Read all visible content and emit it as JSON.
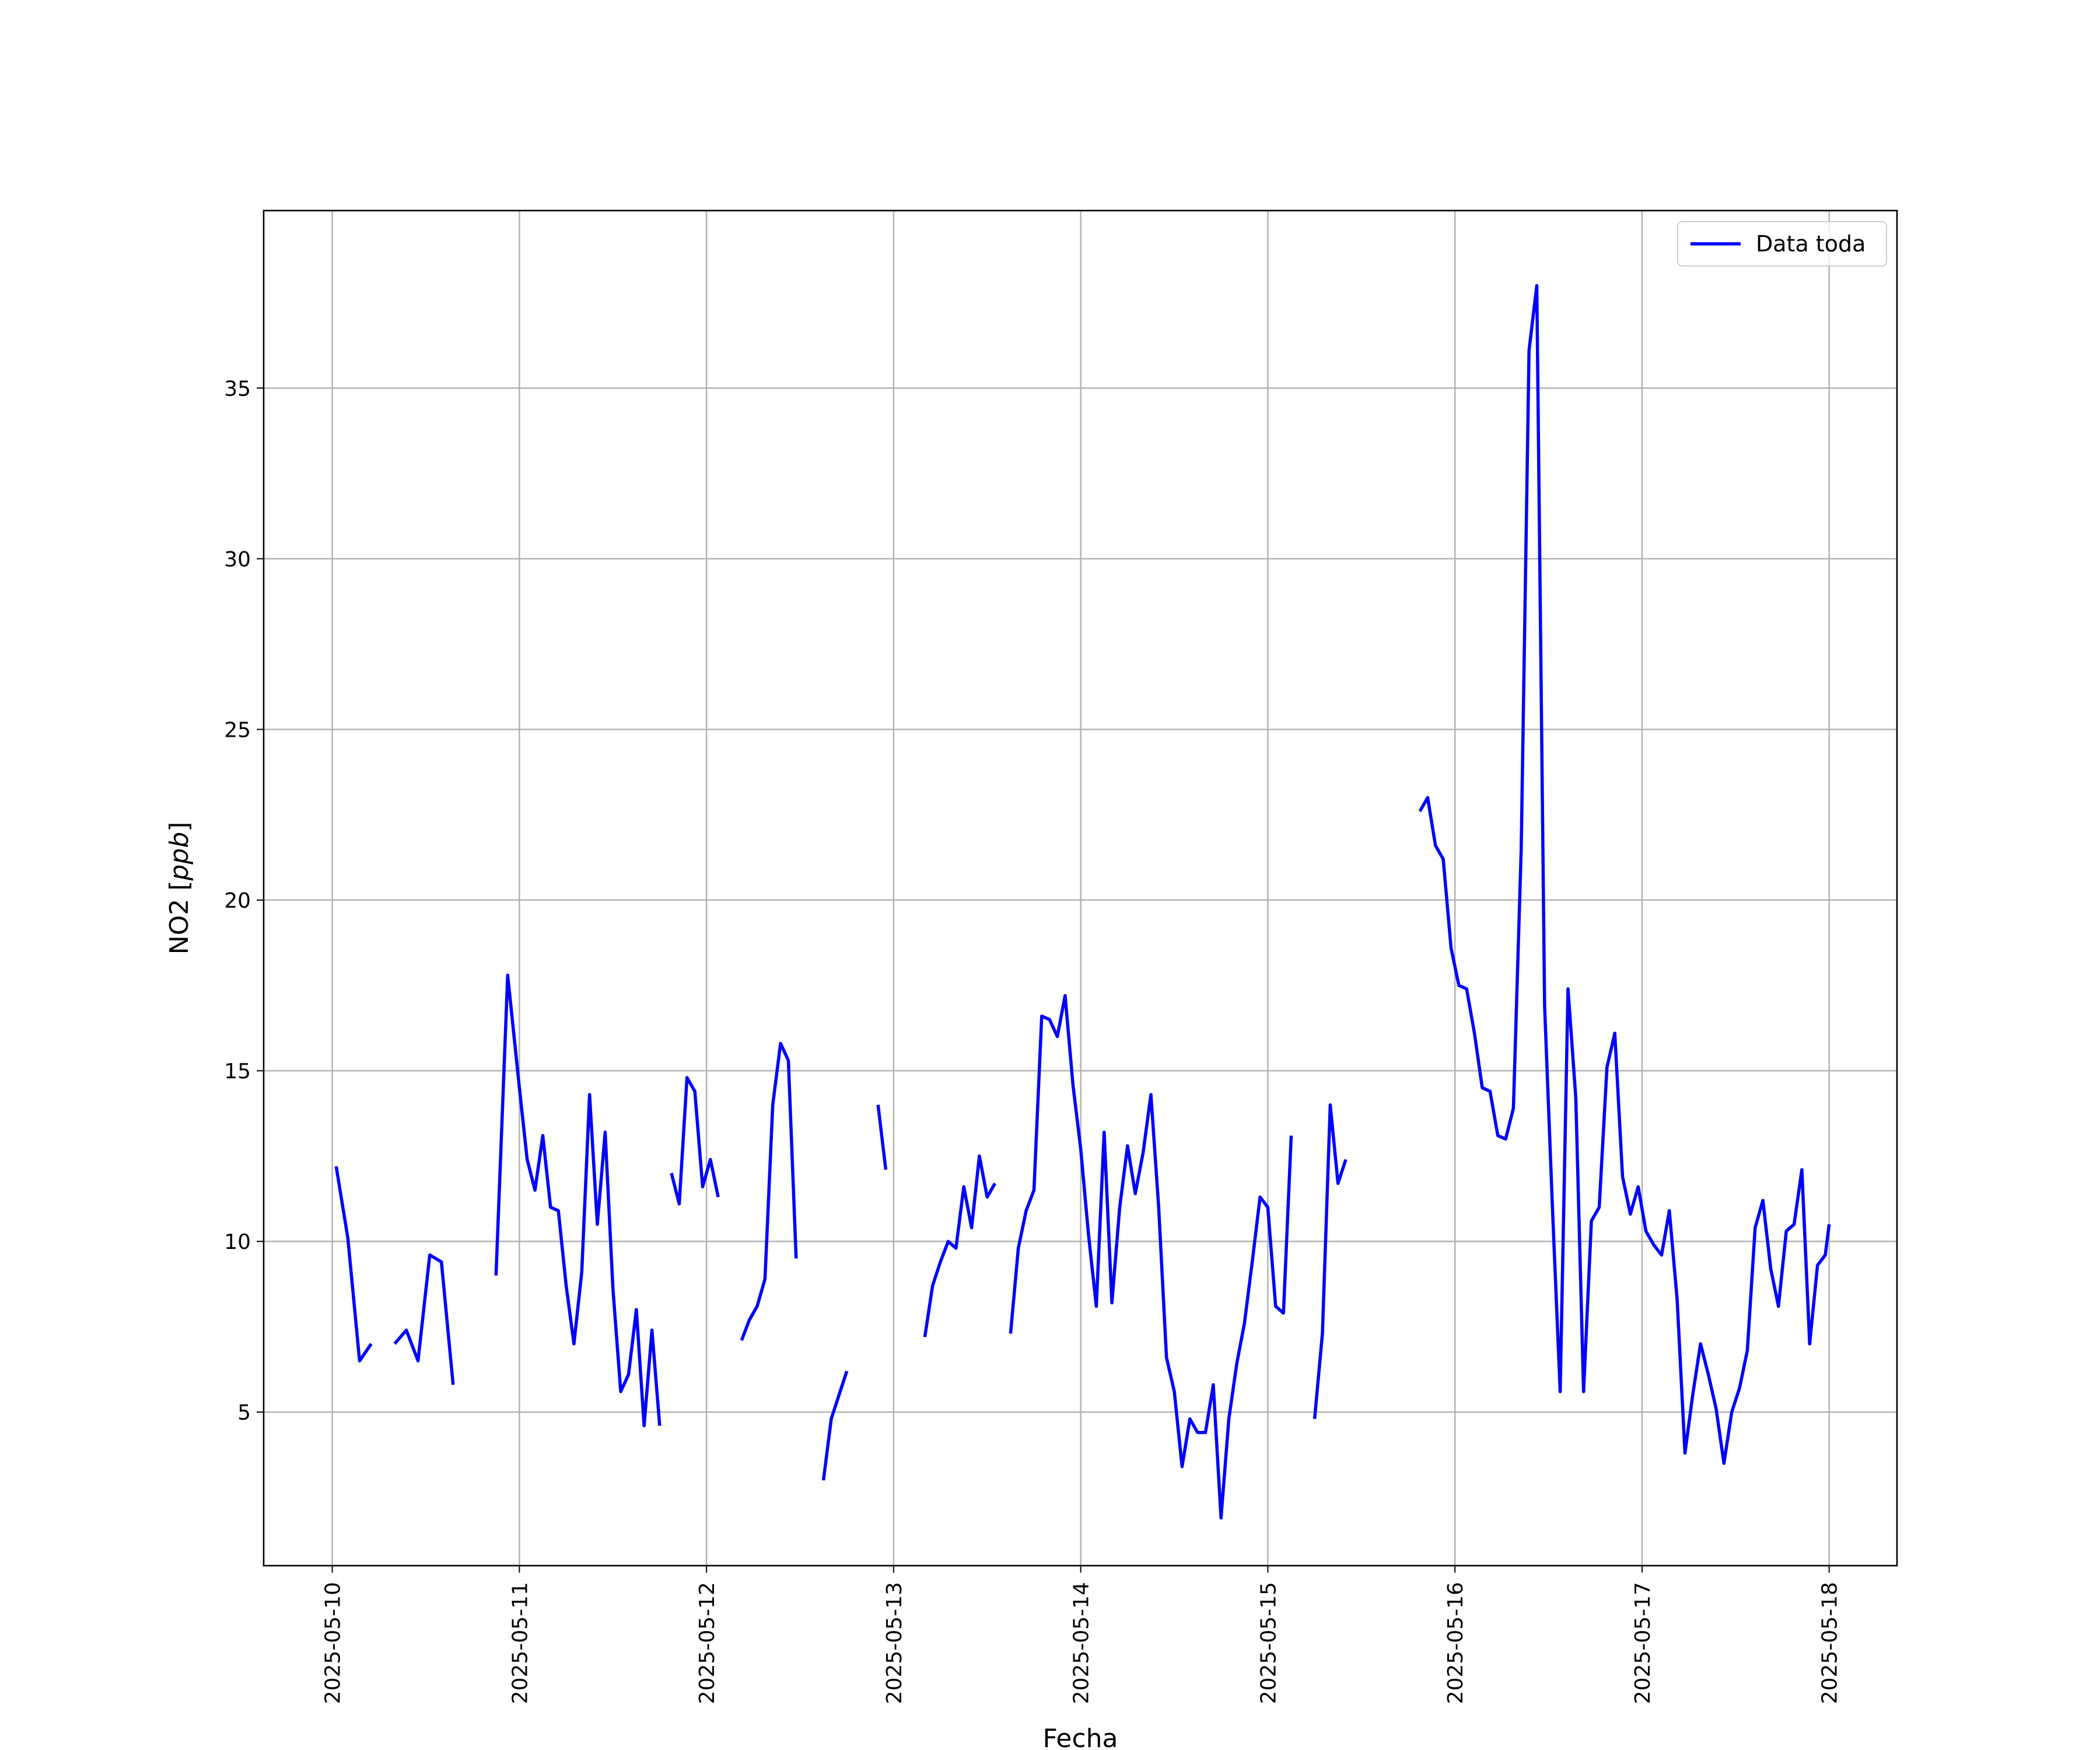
{
  "chart_data": {
    "type": "line",
    "title": "",
    "xlabel": "Fecha",
    "ylabel": "NO2 [ppb]",
    "ylabel_main": "NO2 [",
    "ylabel_unit": "ppb",
    "ylabel_close": "]",
    "x_ticks": [
      "2025-05-10",
      "2025-05-11",
      "2025-05-12",
      "2025-05-13",
      "2025-05-14",
      "2025-05-15",
      "2025-05-16",
      "2025-05-17",
      "2025-05-18"
    ],
    "y_ticks": [
      5,
      10,
      15,
      20,
      25,
      30,
      35
    ],
    "xlim": [
      "2025-05-09 15:12",
      "2025-05-18 08:42"
    ],
    "ylim": [
      0.5,
      40.2
    ],
    "grid": true,
    "legend": "top-right",
    "series": [
      {
        "name": "Data toda",
        "color": "#0000ff",
        "segments": [
          [
            [
              "2025-05-10 00:30",
              12.2
            ],
            [
              "2025-05-10 02:00",
              10.1
            ],
            [
              "2025-05-10 03:30",
              6.5
            ],
            [
              "2025-05-10 05:00",
              7.0
            ]
          ],
          [
            [
              "2025-05-10 08:00",
              7.0
            ],
            [
              "2025-05-10 09:30",
              7.4
            ],
            [
              "2025-05-10 11:00",
              6.5
            ],
            [
              "2025-05-10 12:30",
              9.6
            ],
            [
              "2025-05-10 14:00",
              9.4
            ],
            [
              "2025-05-10 15:30",
              5.8
            ]
          ],
          [
            [
              "2025-05-10 21:00",
              9.0
            ],
            [
              "2025-05-10 22:30",
              17.8
            ],
            [
              "2025-05-11 00:00",
              14.5
            ],
            [
              "2025-05-11 01:00",
              12.4
            ],
            [
              "2025-05-11 02:00",
              11.5
            ],
            [
              "2025-05-11 03:00",
              13.1
            ],
            [
              "2025-05-11 04:00",
              11.0
            ],
            [
              "2025-05-11 05:00",
              10.9
            ],
            [
              "2025-05-11 06:00",
              8.7
            ],
            [
              "2025-05-11 07:00",
              7.0
            ],
            [
              "2025-05-11 08:00",
              9.1
            ],
            [
              "2025-05-11 09:00",
              14.3
            ],
            [
              "2025-05-11 10:00",
              10.5
            ],
            [
              "2025-05-11 11:00",
              13.2
            ],
            [
              "2025-05-11 12:00",
              8.6
            ],
            [
              "2025-05-11 13:00",
              5.6
            ],
            [
              "2025-05-11 14:00",
              6.1
            ],
            [
              "2025-05-11 15:00",
              8.0
            ],
            [
              "2025-05-11 16:00",
              4.6
            ],
            [
              "2025-05-11 17:00",
              7.4
            ],
            [
              "2025-05-11 18:00",
              4.6
            ]
          ],
          [
            [
              "2025-05-11 19:30",
              12.0
            ],
            [
              "2025-05-11 20:30",
              11.1
            ],
            [
              "2025-05-11 21:30",
              14.8
            ],
            [
              "2025-05-11 22:30",
              14.4
            ],
            [
              "2025-05-11 23:30",
              11.6
            ],
            [
              "2025-05-12 00:30",
              12.4
            ],
            [
              "2025-05-12 01:30",
              11.3
            ]
          ],
          [
            [
              "2025-05-12 04:30",
              7.1
            ],
            [
              "2025-05-12 05:30",
              7.7
            ],
            [
              "2025-05-12 06:30",
              8.1
            ],
            [
              "2025-05-12 07:30",
              8.9
            ],
            [
              "2025-05-12 08:30",
              14.0
            ],
            [
              "2025-05-12 09:30",
              15.8
            ],
            [
              "2025-05-12 10:30",
              15.3
            ],
            [
              "2025-05-12 11:30",
              9.5
            ]
          ],
          [
            [
              "2025-05-12 15:00",
              3.0
            ],
            [
              "2025-05-12 16:00",
              4.8
            ],
            [
              "2025-05-12 17:00",
              5.5
            ],
            [
              "2025-05-12 18:00",
              6.2
            ]
          ],
          [
            [
              "2025-05-12 22:00",
              14.0
            ],
            [
              "2025-05-12 23:00",
              12.1
            ]
          ],
          [
            [
              "2025-05-13 04:00",
              7.2
            ],
            [
              "2025-05-13 05:00",
              8.7
            ],
            [
              "2025-05-13 06:00",
              9.4
            ],
            [
              "2025-05-13 07:00",
              10.0
            ],
            [
              "2025-05-13 08:00",
              9.8
            ],
            [
              "2025-05-13 09:00",
              11.6
            ],
            [
              "2025-05-13 10:00",
              10.4
            ],
            [
              "2025-05-13 11:00",
              12.5
            ],
            [
              "2025-05-13 12:00",
              11.3
            ],
            [
              "2025-05-13 13:00",
              11.7
            ]
          ],
          [
            [
              "2025-05-13 15:00",
              7.3
            ],
            [
              "2025-05-13 16:00",
              9.8
            ],
            [
              "2025-05-13 17:00",
              10.9
            ],
            [
              "2025-05-13 18:00",
              11.5
            ],
            [
              "2025-05-13 19:00",
              16.6
            ],
            [
              "2025-05-13 20:00",
              16.5
            ],
            [
              "2025-05-13 21:00",
              16.0
            ],
            [
              "2025-05-13 22:00",
              17.2
            ],
            [
              "2025-05-13 23:00",
              14.6
            ],
            [
              "2025-05-14 00:00",
              12.7
            ],
            [
              "2025-05-14 01:00",
              10.2
            ],
            [
              "2025-05-14 02:00",
              8.1
            ],
            [
              "2025-05-14 03:00",
              13.2
            ],
            [
              "2025-05-14 04:00",
              8.2
            ],
            [
              "2025-05-14 05:00",
              11.0
            ],
            [
              "2025-05-14 06:00",
              12.8
            ],
            [
              "2025-05-14 07:00",
              11.4
            ],
            [
              "2025-05-14 08:00",
              12.6
            ],
            [
              "2025-05-14 09:00",
              14.3
            ],
            [
              "2025-05-14 10:00",
              11.0
            ],
            [
              "2025-05-14 11:00",
              6.6
            ],
            [
              "2025-05-14 12:00",
              5.6
            ],
            [
              "2025-05-14 13:00",
              3.4
            ],
            [
              "2025-05-14 14:00",
              4.8
            ],
            [
              "2025-05-14 15:00",
              4.4
            ],
            [
              "2025-05-14 16:00",
              4.4
            ],
            [
              "2025-05-14 17:00",
              5.8
            ],
            [
              "2025-05-14 18:00",
              1.9
            ],
            [
              "2025-05-14 19:00",
              4.8
            ],
            [
              "2025-05-14 20:00",
              6.4
            ],
            [
              "2025-05-14 21:00",
              7.6
            ],
            [
              "2025-05-14 22:00",
              9.4
            ],
            [
              "2025-05-14 23:00",
              11.3
            ],
            [
              "2025-05-15 00:00",
              11.0
            ],
            [
              "2025-05-15 01:00",
              8.1
            ],
            [
              "2025-05-15 02:00",
              7.9
            ],
            [
              "2025-05-15 03:00",
              13.1
            ]
          ],
          [
            [
              "2025-05-15 06:00",
              4.8
            ],
            [
              "2025-05-15 07:00",
              7.3
            ],
            [
              "2025-05-15 08:00",
              14.0
            ],
            [
              "2025-05-15 09:00",
              11.7
            ],
            [
              "2025-05-15 10:00",
              12.4
            ]
          ],
          [
            [
              "2025-05-15 19:30",
              22.6
            ],
            [
              "2025-05-15 20:30",
              23.0
            ],
            [
              "2025-05-15 21:30",
              21.6
            ],
            [
              "2025-05-15 22:30",
              21.2
            ],
            [
              "2025-05-15 23:30",
              18.6
            ],
            [
              "2025-05-16 00:30",
              17.5
            ],
            [
              "2025-05-16 01:30",
              17.4
            ],
            [
              "2025-05-16 02:30",
              16.1
            ],
            [
              "2025-05-16 03:30",
              14.5
            ],
            [
              "2025-05-16 04:30",
              14.4
            ],
            [
              "2025-05-16 05:30",
              13.1
            ],
            [
              "2025-05-16 06:30",
              13.0
            ],
            [
              "2025-05-16 07:30",
              13.9
            ],
            [
              "2025-05-16 08:30",
              21.5
            ],
            [
              "2025-05-16 09:30",
              36.1
            ],
            [
              "2025-05-16 10:30",
              38.0
            ],
            [
              "2025-05-16 11:30",
              16.9
            ],
            [
              "2025-05-16 12:30",
              11.0
            ],
            [
              "2025-05-16 13:30",
              5.6
            ],
            [
              "2025-05-16 14:30",
              17.4
            ],
            [
              "2025-05-16 15:30",
              14.2
            ],
            [
              "2025-05-16 16:30",
              5.6
            ],
            [
              "2025-05-16 17:30",
              10.6
            ],
            [
              "2025-05-16 18:30",
              11.0
            ],
            [
              "2025-05-16 19:30",
              15.1
            ],
            [
              "2025-05-16 20:30",
              16.1
            ],
            [
              "2025-05-16 21:30",
              11.9
            ],
            [
              "2025-05-16 22:30",
              10.8
            ],
            [
              "2025-05-16 23:30",
              11.6
            ],
            [
              "2025-05-17 00:30",
              10.3
            ],
            [
              "2025-05-17 01:30",
              9.9
            ],
            [
              "2025-05-17 02:30",
              9.6
            ],
            [
              "2025-05-17 03:30",
              10.9
            ],
            [
              "2025-05-17 04:30",
              8.3
            ],
            [
              "2025-05-17 05:30",
              3.8
            ],
            [
              "2025-05-17 06:30",
              5.5
            ],
            [
              "2025-05-17 07:30",
              7.0
            ],
            [
              "2025-05-17 08:30",
              6.1
            ],
            [
              "2025-05-17 09:30",
              5.1
            ],
            [
              "2025-05-17 10:30",
              3.5
            ],
            [
              "2025-05-17 11:30",
              5.0
            ],
            [
              "2025-05-17 12:30",
              5.7
            ],
            [
              "2025-05-17 13:30",
              6.8
            ],
            [
              "2025-05-17 14:30",
              10.4
            ],
            [
              "2025-05-17 15:30",
              11.2
            ],
            [
              "2025-05-17 16:30",
              9.2
            ],
            [
              "2025-05-17 17:30",
              8.1
            ],
            [
              "2025-05-17 18:30",
              10.3
            ],
            [
              "2025-05-17 19:30",
              10.5
            ],
            [
              "2025-05-17 20:30",
              12.1
            ],
            [
              "2025-05-17 21:30",
              7.0
            ],
            [
              "2025-05-17 22:30",
              9.3
            ],
            [
              "2025-05-17 23:30",
              9.6
            ],
            [
              "2025-05-18 00:00",
              10.5
            ]
          ]
        ]
      }
    ]
  }
}
